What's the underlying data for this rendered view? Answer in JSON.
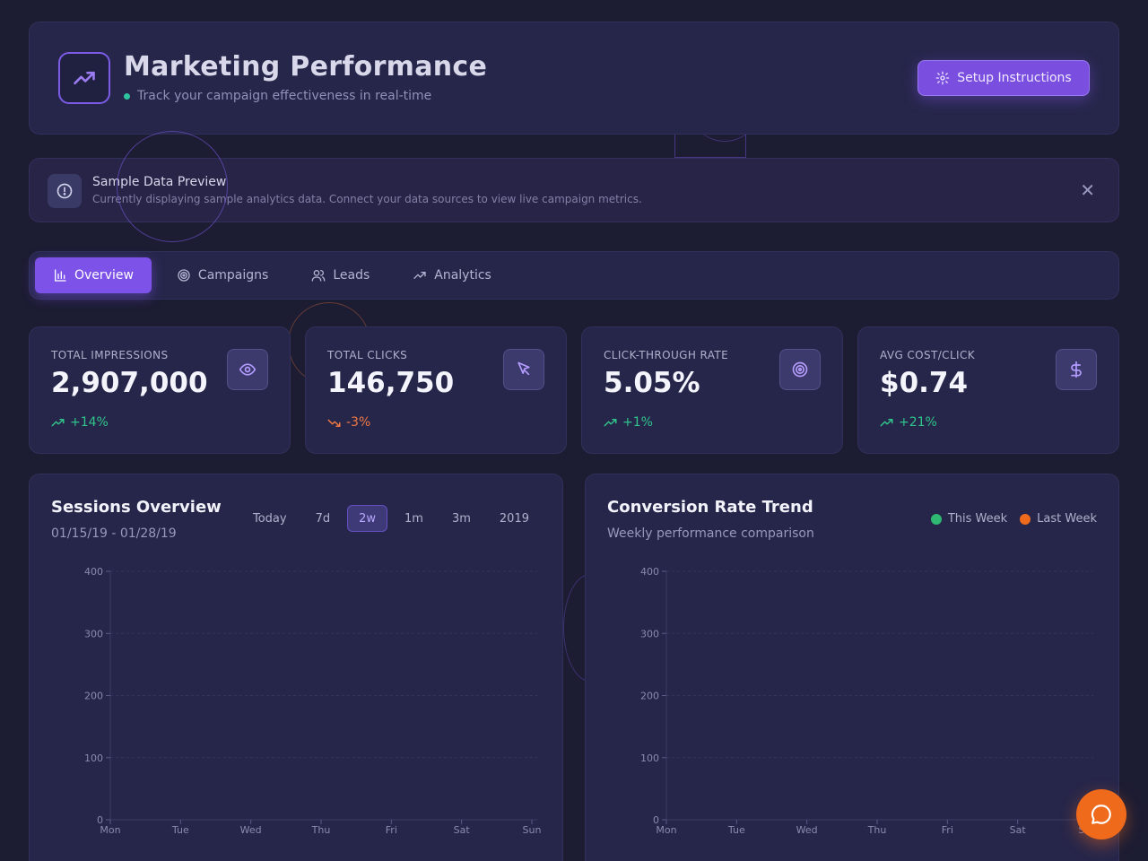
{
  "header": {
    "title": "Marketing Performance",
    "subtitle": "Track your campaign effectiveness in real-time",
    "setup_label": "Setup Instructions",
    "logo_icon": "trending-up-icon"
  },
  "notice": {
    "title": "Sample Data Preview",
    "text": "Currently displaying sample analytics data. Connect your data sources to view live campaign metrics.",
    "close_glyph": "✕"
  },
  "tabs": [
    {
      "label": "Overview",
      "icon": "bar-chart-icon",
      "active": true
    },
    {
      "label": "Campaigns",
      "icon": "target-icon",
      "active": false
    },
    {
      "label": "Leads",
      "icon": "users-icon",
      "active": false
    },
    {
      "label": "Analytics",
      "icon": "trending-up-icon",
      "active": false
    }
  ],
  "stats": [
    {
      "label": "TOTAL IMPRESSIONS",
      "value": "2,907,000",
      "change": "+14%",
      "trend": "up",
      "icon": "eye-icon"
    },
    {
      "label": "TOTAL CLICKS",
      "value": "146,750",
      "change": "-3%",
      "trend": "down",
      "icon": "cursor-icon"
    },
    {
      "label": "CLICK-THROUGH RATE",
      "value": "5.05%",
      "change": "+1%",
      "trend": "up",
      "icon": "target-icon"
    },
    {
      "label": "AVG COST/CLICK",
      "value": "$0.74",
      "change": "+21%",
      "trend": "up",
      "icon": "dollar-icon"
    }
  ],
  "sessions": {
    "title": "Sessions Overview",
    "date_range": "01/15/19 - 01/28/19",
    "ranges": [
      "Today",
      "7d",
      "2w",
      "1m",
      "3m",
      "2019"
    ],
    "active_range": "2w"
  },
  "conversion": {
    "title": "Conversion Rate Trend",
    "subtitle": "Weekly performance comparison",
    "legend": [
      {
        "label": "This Week",
        "color": "#2eb872"
      },
      {
        "label": "Last Week",
        "color": "#f06a1c"
      }
    ]
  },
  "chart_data": [
    {
      "type": "line",
      "categories": [
        "Mon",
        "Tue",
        "Wed",
        "Thu",
        "Fri",
        "Sat",
        "Sun"
      ],
      "yticks": [
        0,
        100,
        200,
        300,
        400
      ],
      "ylim": [
        0,
        400
      ],
      "series": []
    },
    {
      "type": "line",
      "categories": [
        "Mon",
        "Tue",
        "Wed",
        "Thu",
        "Fri",
        "Sat",
        "Sun"
      ],
      "yticks": [
        0,
        100,
        200,
        300,
        400
      ],
      "ylim": [
        0,
        400
      ],
      "series": []
    }
  ],
  "colors": {
    "accent": "#7c52e8",
    "positive": "#30c48a",
    "negative": "#f07844",
    "fab": "#f06a1c"
  },
  "fab_icon": "chat-bubble-icon"
}
